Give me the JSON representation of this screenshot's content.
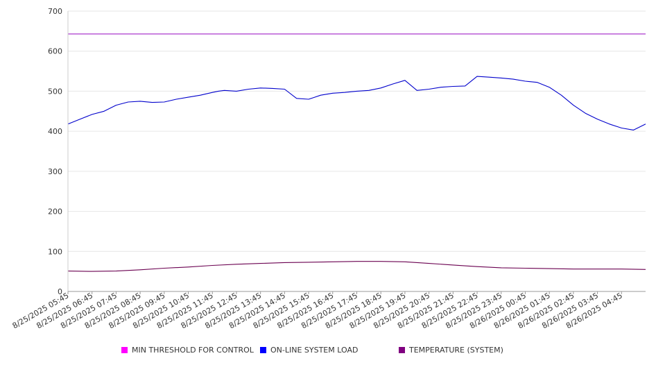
{
  "chart_data": {
    "type": "line",
    "title": "",
    "xlabel": "",
    "ylabel": "",
    "ylim": [
      0,
      700
    ],
    "y_ticks": [
      0,
      100,
      200,
      300,
      400,
      500,
      600,
      700
    ],
    "grid": true,
    "legend_position": "bottom",
    "x_tick_labels": [
      "8/25/2025 05:45",
      "8/25/2025 06:45",
      "8/25/2025 07:45",
      "8/25/2025 08:45",
      "8/25/2025 09:45",
      "8/25/2025 10:45",
      "8/25/2025 11:45",
      "8/25/2025 12:45",
      "8/25/2025 13:45",
      "8/25/2025 14:45",
      "8/25/2025 15:45",
      "8/25/2025 16:45",
      "8/25/2025 17:45",
      "8/25/2025 18:45",
      "8/25/2025 19:45",
      "8/25/2025 20:45",
      "8/25/2025 21:45",
      "8/25/2025 22:45",
      "8/25/2025 23:45",
      "8/26/2025 00:45",
      "8/26/2025 01:45",
      "8/26/2025 02:45",
      "8/26/2025 03:45",
      "8/26/2025 04:45"
    ],
    "x_range": [
      "8/25/2025 05:45",
      "8/26/2025 05:45"
    ],
    "series": [
      {
        "name": "MIN THRESHOLD FOR CONTROL",
        "color": "#ff00ff",
        "line_color": "#a020c8",
        "x": [
          "8/25/2025 05:45",
          "8/26/2025 05:45"
        ],
        "values": [
          643,
          643
        ]
      },
      {
        "name": "ON-LINE SYSTEM LOAD",
        "color": "#0000ff",
        "line_color": "#0000cc",
        "x": [
          "8/25/2025 05:45",
          "8/25/2025 06:15",
          "8/25/2025 06:45",
          "8/25/2025 07:15",
          "8/25/2025 07:45",
          "8/25/2025 08:15",
          "8/25/2025 08:45",
          "8/25/2025 09:15",
          "8/25/2025 09:45",
          "8/25/2025 10:15",
          "8/25/2025 10:45",
          "8/25/2025 11:15",
          "8/25/2025 11:45",
          "8/25/2025 12:00",
          "8/25/2025 12:15",
          "8/25/2025 12:45",
          "8/25/2025 13:15",
          "8/25/2025 13:45",
          "8/25/2025 14:15",
          "8/25/2025 14:45",
          "8/25/2025 15:15",
          "8/25/2025 15:45",
          "8/25/2025 16:00",
          "8/25/2025 16:15",
          "8/25/2025 16:45",
          "8/25/2025 17:15",
          "8/25/2025 17:45",
          "8/25/2025 18:15",
          "8/25/2025 18:45",
          "8/25/2025 19:15",
          "8/25/2025 19:45",
          "8/25/2025 20:15",
          "8/25/2025 20:45",
          "8/25/2025 21:15",
          "8/25/2025 21:45",
          "8/25/2025 22:15",
          "8/25/2025 22:45",
          "8/25/2025 23:15",
          "8/25/2025 23:45",
          "8/26/2025 00:15",
          "8/26/2025 00:45",
          "8/26/2025 01:15",
          "8/26/2025 01:45",
          "8/26/2025 02:15",
          "8/26/2025 02:45",
          "8/26/2025 03:15",
          "8/26/2025 03:45",
          "8/26/2025 04:15",
          "8/26/2025 04:45",
          "8/26/2025 05:15",
          "8/26/2025 05:45"
        ],
        "values": [
          418,
          430,
          442,
          450,
          465,
          473,
          475,
          472,
          473,
          480,
          485,
          490,
          497,
          500,
          502,
          500,
          505,
          508,
          507,
          505,
          482,
          480,
          485,
          490,
          495,
          497,
          500,
          502,
          508,
          518,
          527,
          502,
          505,
          510,
          512,
          513,
          537,
          535,
          533,
          530,
          525,
          522,
          510,
          490,
          465,
          445,
          430,
          418,
          408,
          403,
          418
        ]
      },
      {
        "name": "TEMPERATURE (SYSTEM)",
        "color": "#800080",
        "line_color": "#6a0050",
        "x": [
          "8/25/2025 05:45",
          "8/25/2025 06:45",
          "8/25/2025 07:45",
          "8/25/2025 08:45",
          "8/25/2025 09:45",
          "8/25/2025 10:45",
          "8/25/2025 11:45",
          "8/25/2025 12:45",
          "8/25/2025 13:45",
          "8/25/2025 14:45",
          "8/25/2025 15:45",
          "8/25/2025 16:45",
          "8/25/2025 17:45",
          "8/25/2025 18:45",
          "8/25/2025 19:45",
          "8/25/2025 20:45",
          "8/25/2025 21:45",
          "8/25/2025 22:45",
          "8/25/2025 23:45",
          "8/26/2025 00:45",
          "8/26/2025 01:45",
          "8/26/2025 02:45",
          "8/26/2025 03:45",
          "8/26/2025 04:45",
          "8/26/2025 05:45"
        ],
        "values": [
          51,
          50,
          51,
          54,
          58,
          61,
          65,
          68,
          70,
          72,
          73,
          74,
          75,
          75,
          74,
          70,
          66,
          62,
          59,
          58,
          57,
          56,
          56,
          56,
          55
        ]
      }
    ]
  }
}
